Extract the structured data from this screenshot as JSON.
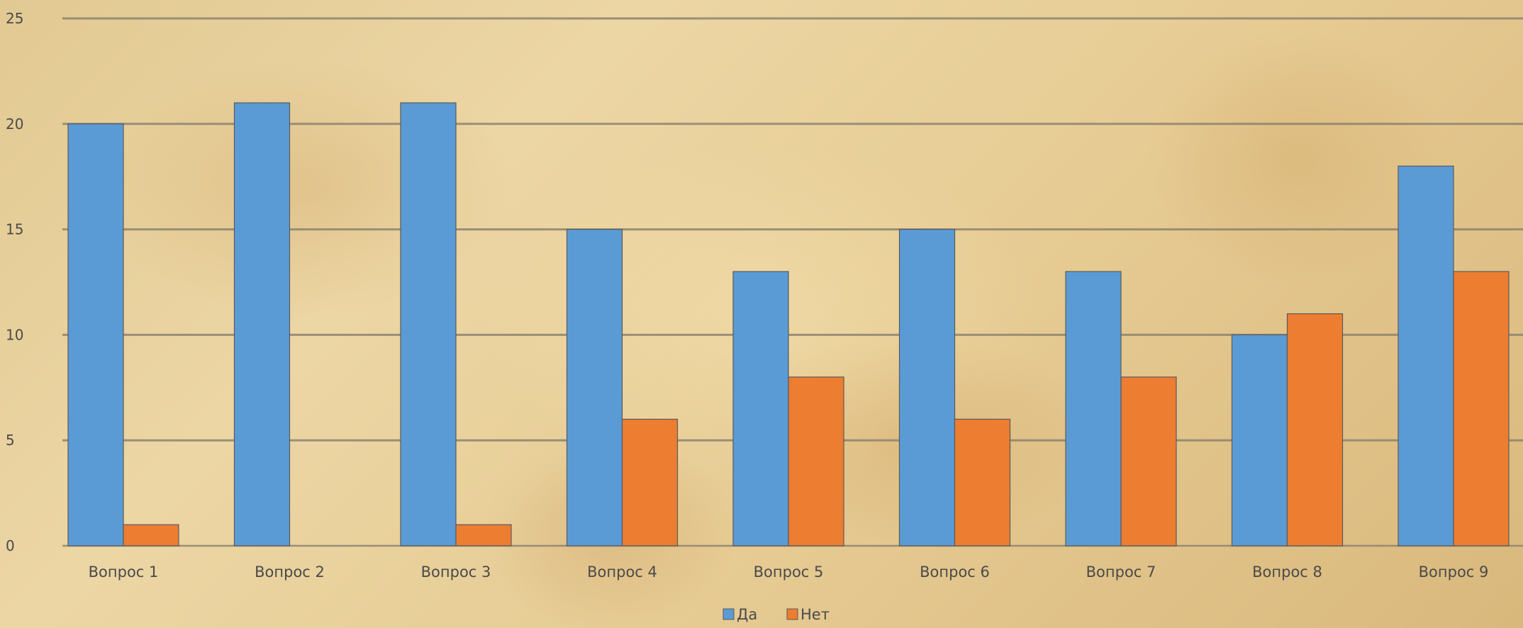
{
  "chart_data": {
    "type": "bar",
    "categories": [
      "Вопрос 1",
      "Вопрос 2",
      "Вопрос 3",
      "Вопрос 4",
      "Вопрос 5",
      "Вопрос 6",
      "Вопрос 7",
      "Вопрос 8",
      "Вопрос 9"
    ],
    "series": [
      {
        "name": "Да",
        "color": "#5b9bd5",
        "values": [
          20,
          21,
          21,
          15,
          13,
          15,
          13,
          10,
          18
        ]
      },
      {
        "name": "Нет",
        "color": "#ed7d31",
        "values": [
          1,
          0,
          1,
          6,
          8,
          6,
          8,
          11,
          13
        ]
      }
    ],
    "yticks": [
      0,
      5,
      10,
      15,
      20,
      25
    ],
    "ylim": [
      0,
      25
    ],
    "grid": true,
    "legend_position": "bottom",
    "title": "",
    "xlabel": "",
    "ylabel": ""
  }
}
